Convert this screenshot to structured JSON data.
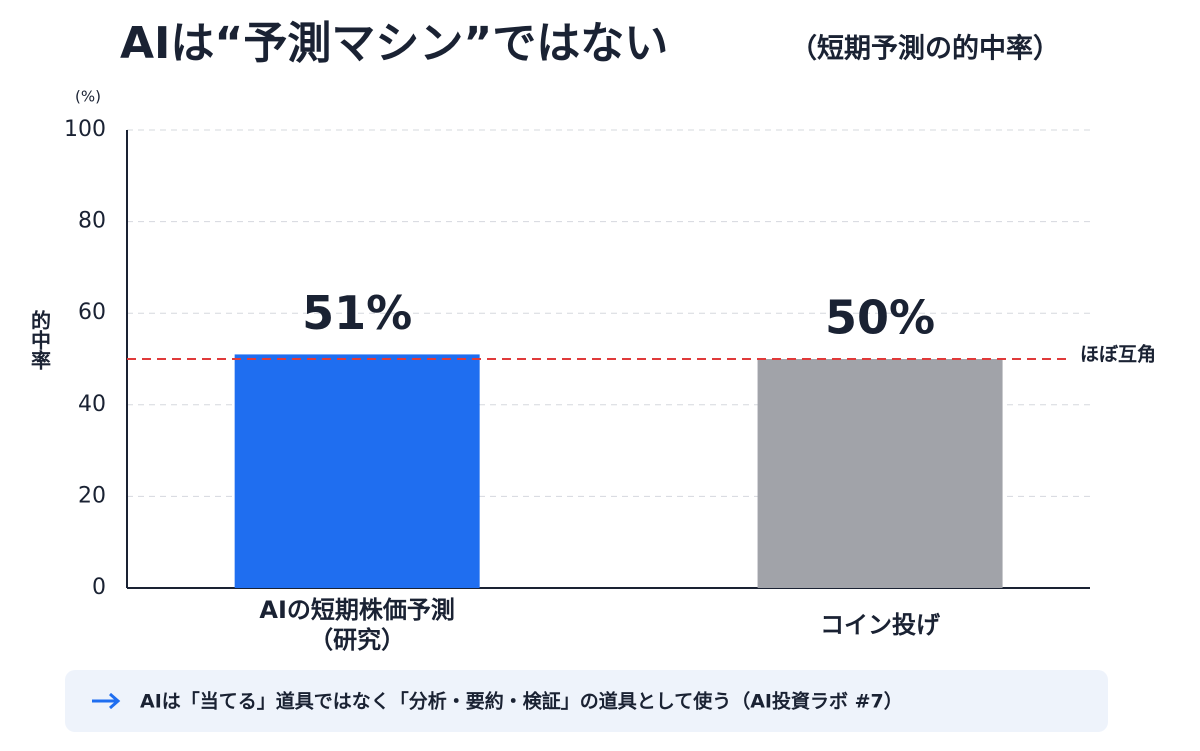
{
  "chart_data": {
    "type": "bar",
    "title": "AIは“予測マシン”ではない",
    "subtitle": "（短期予測の的中率）",
    "y_unit": "(%)",
    "ylabel": "的中率",
    "categories": [
      "AIの短期株価予測\n（研究）",
      "コイン投げ"
    ],
    "values": [
      51,
      50
    ],
    "value_labels": [
      "51%",
      "50%"
    ],
    "colors": [
      "#1f6ef0",
      "#a1a3a9"
    ],
    "value_label_colors": [
      "#1f6ef0",
      "#45474c"
    ],
    "ylim": [
      0,
      100
    ],
    "yticks": [
      0,
      20,
      40,
      60,
      80,
      100
    ],
    "grid": true,
    "reference_line": {
      "value": 50,
      "label": "ほぼ互角",
      "color": "#e03a3a"
    },
    "note": "AIは「当てる」道具ではなく「分析・要約・検証」の道具として使う（AI投資ラボ #7）"
  }
}
